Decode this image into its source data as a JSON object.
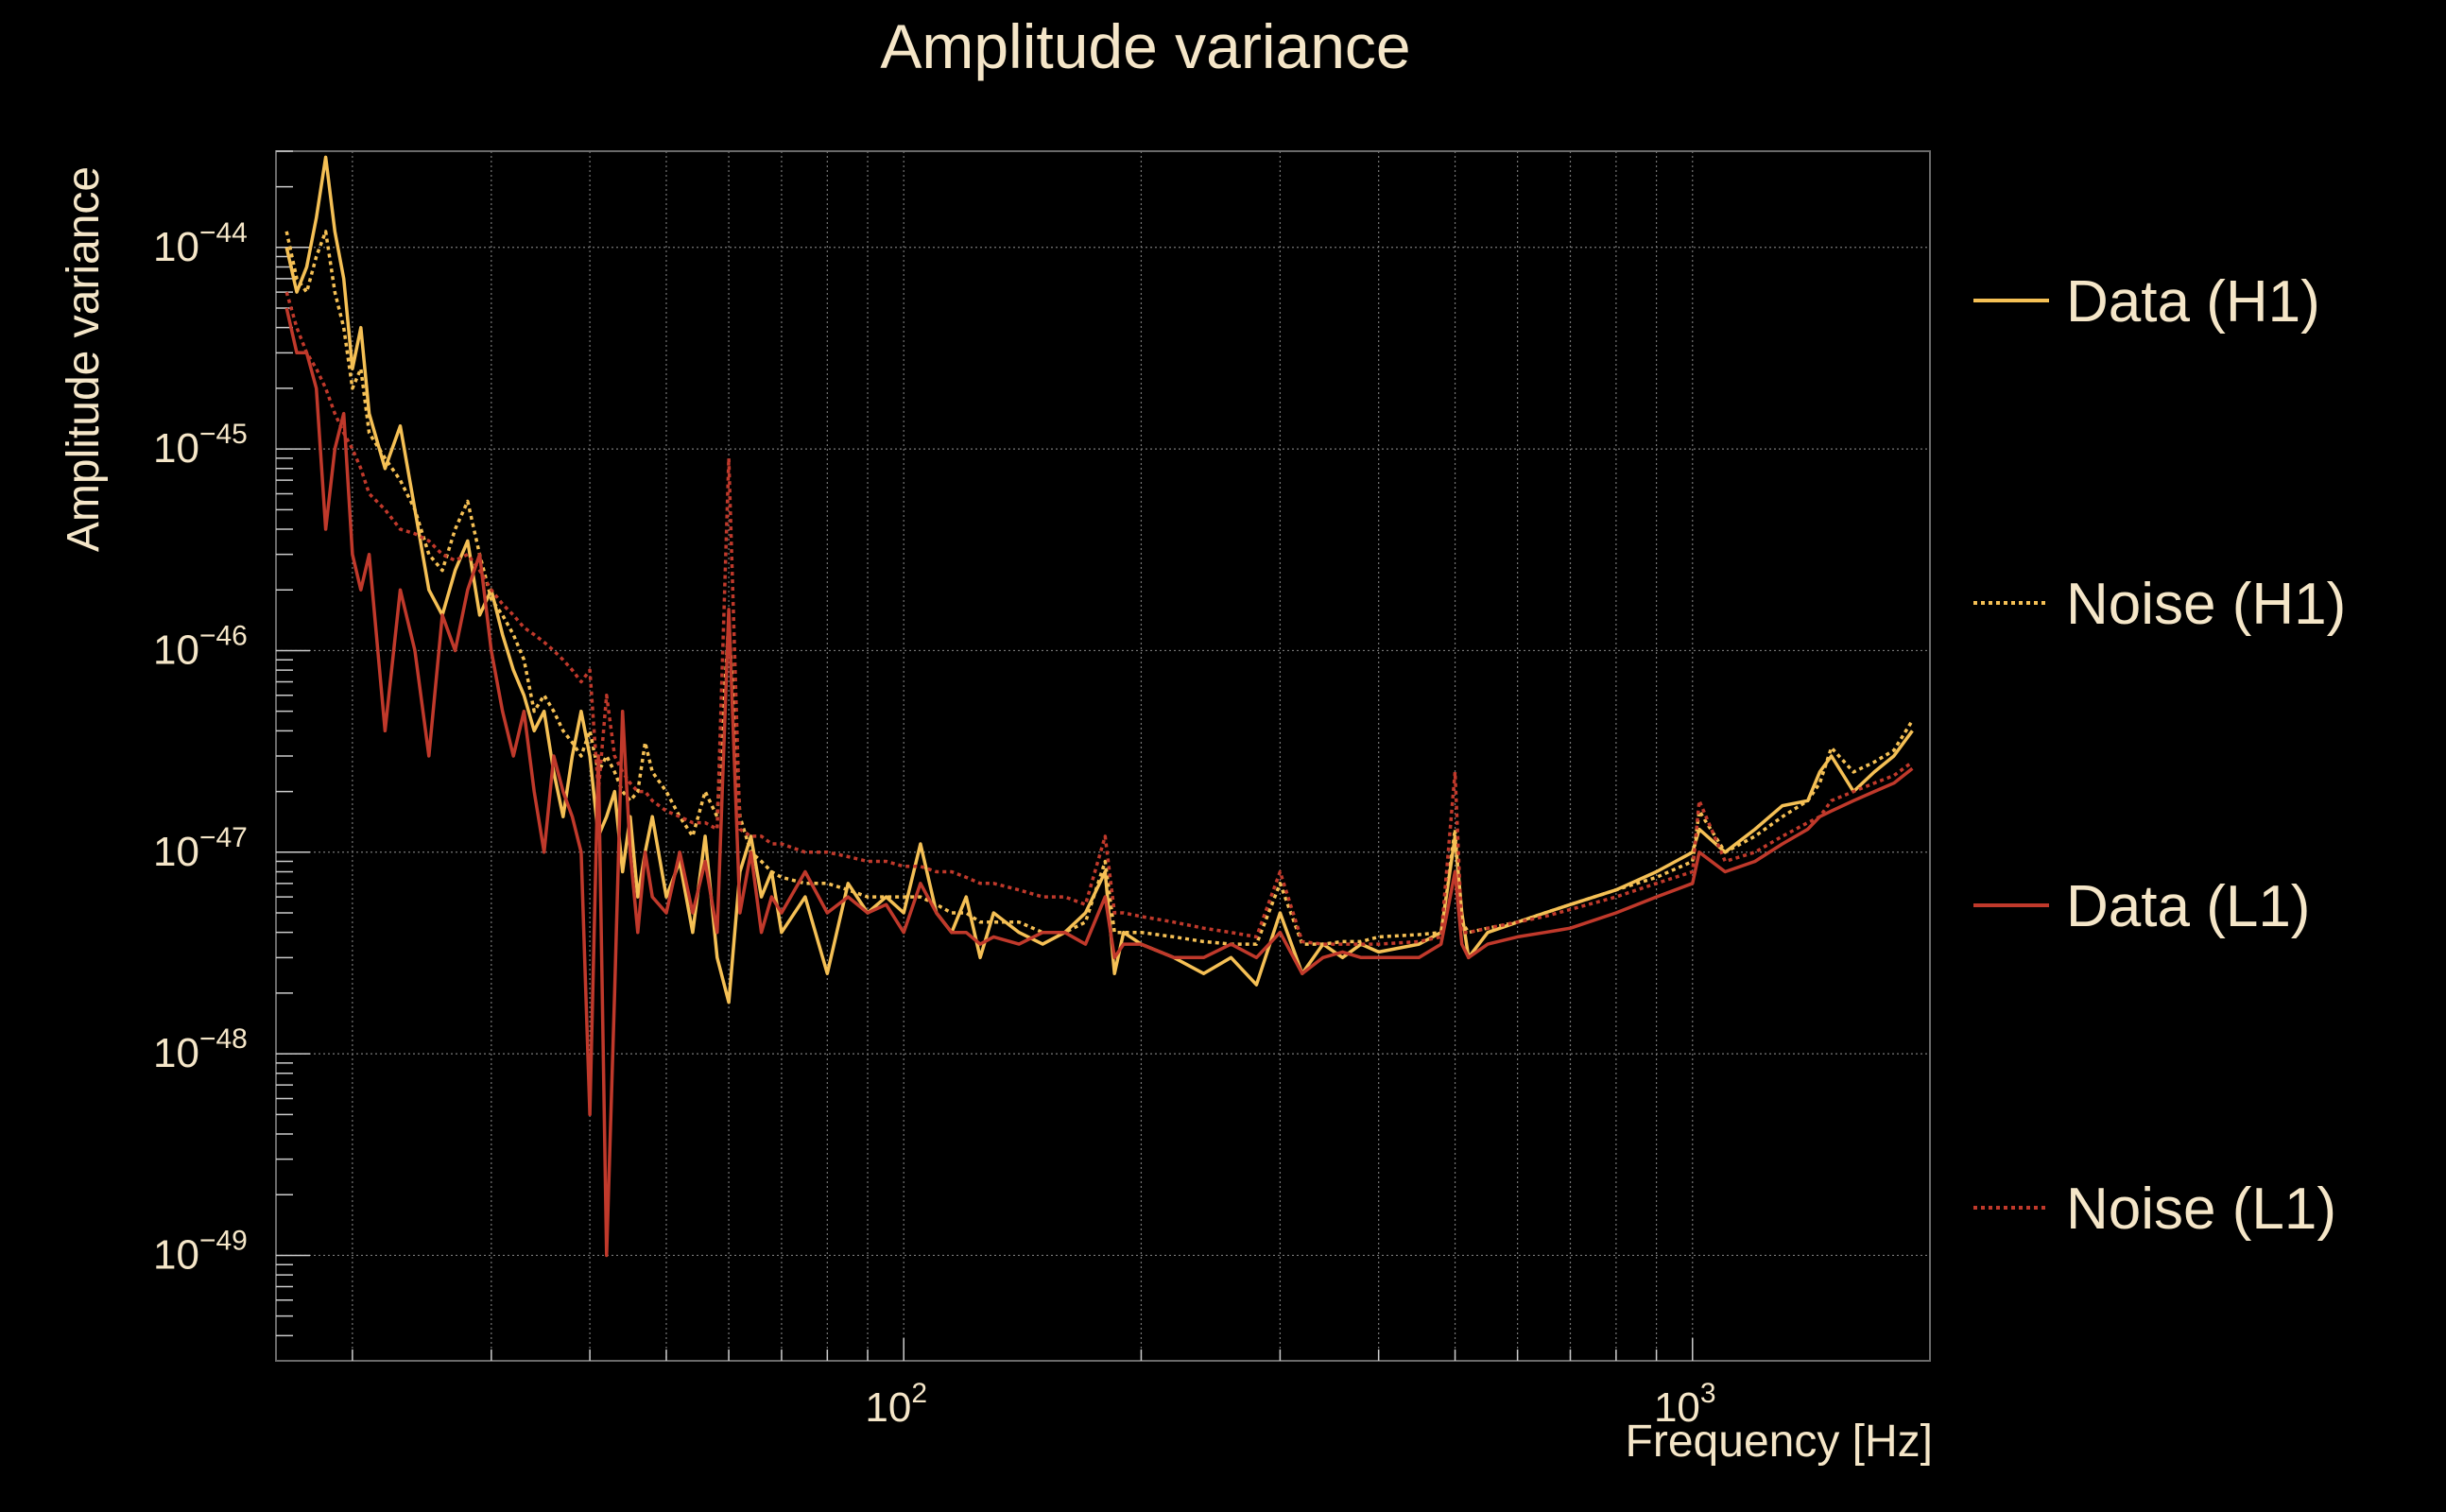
{
  "chart_data": {
    "type": "line",
    "title": "Amplitude variance",
    "xlabel": "Frequency [Hz]",
    "ylabel": "Amplitude variance",
    "x_scale": "log",
    "y_scale": "log",
    "xlim": [
      16,
      2000
    ],
    "ylim": [
      3e-50,
      3e-44
    ],
    "grid": true,
    "legend_placement": "right",
    "x_ticks": [
      {
        "base": "10",
        "exp": "2",
        "value": 100
      },
      {
        "base": "10",
        "exp": "3",
        "value": 1000
      }
    ],
    "y_ticks": [
      {
        "base": "10",
        "exp": "−44",
        "value": 1e-44
      },
      {
        "base": "10",
        "exp": "−45",
        "value": 1e-45
      },
      {
        "base": "10",
        "exp": "−46",
        "value": 1e-46
      },
      {
        "base": "10",
        "exp": "−47",
        "value": 1e-47
      },
      {
        "base": "10",
        "exp": "−48",
        "value": 1e-48
      },
      {
        "base": "10",
        "exp": "−49",
        "value": 1e-49
      }
    ],
    "series": [
      {
        "name": "Data (H1)",
        "color": "#f5c055",
        "dash": "solid",
        "x": [
          16.5,
          17,
          17.5,
          18,
          18.5,
          19,
          19.5,
          20,
          20.5,
          21,
          22,
          23,
          24,
          25,
          26,
          27,
          28,
          29,
          30,
          31,
          32,
          33,
          34,
          35,
          36,
          37,
          38,
          39,
          40,
          41,
          42,
          43,
          44,
          45,
          46,
          47,
          48,
          50,
          52,
          54,
          56,
          58,
          60,
          62,
          64,
          66,
          68,
          70,
          75,
          80,
          85,
          90,
          95,
          100,
          105,
          110,
          115,
          120,
          125,
          130,
          140,
          150,
          160,
          170,
          180,
          185,
          190,
          200,
          220,
          240,
          260,
          280,
          300,
          320,
          340,
          360,
          380,
          400,
          450,
          480,
          500,
          510,
          520,
          550,
          600,
          650,
          700,
          800,
          900,
          1000,
          1020,
          1100,
          1200,
          1300,
          1400,
          1450,
          1500,
          1600,
          1700,
          1800,
          1900
        ],
        "y": [
          1e-44,
          6e-45,
          8e-45,
          1.4e-44,
          2.8e-44,
          1.2e-44,
          7e-45,
          2.5e-45,
          4e-45,
          1.5e-45,
          8e-46,
          1.3e-45,
          5e-46,
          2e-46,
          1.5e-46,
          2.5e-46,
          3.5e-46,
          1.5e-46,
          2e-46,
          1.2e-46,
          8e-47,
          6e-47,
          4e-47,
          5e-47,
          2.5e-47,
          1.5e-47,
          3e-47,
          5e-47,
          3e-47,
          1.2e-47,
          1.5e-47,
          2e-47,
          8e-48,
          1.5e-47,
          6e-48,
          1e-47,
          1.5e-47,
          6e-48,
          9e-48,
          4e-48,
          1.2e-47,
          3e-48,
          1.8e-48,
          8e-48,
          1.2e-47,
          6e-48,
          8e-48,
          4e-48,
          6e-48,
          2.5e-48,
          7e-48,
          5e-48,
          6e-48,
          5e-48,
          1.1e-47,
          5e-48,
          4e-48,
          6e-48,
          3e-48,
          5e-48,
          4e-48,
          3.5e-48,
          4e-48,
          5e-48,
          8e-48,
          2.5e-48,
          4e-48,
          3.5e-48,
          3e-48,
          2.5e-48,
          3e-48,
          2.2e-48,
          5e-48,
          2.5e-48,
          3.5e-48,
          3e-48,
          3.5e-48,
          3.2e-48,
          3.5e-48,
          4e-48,
          1.2e-47,
          5e-48,
          3e-48,
          4e-48,
          4.5e-48,
          5e-48,
          5.5e-48,
          6.5e-48,
          8e-48,
          1e-47,
          1.3e-47,
          1e-47,
          1.3e-47,
          1.7e-47,
          1.8e-47,
          2.5e-47,
          3e-47,
          2e-47,
          2.5e-47,
          3e-47,
          4e-47
        ]
      },
      {
        "name": "Noise (H1)",
        "color": "#f5c055",
        "dash": "dotted",
        "x": [
          16.5,
          17,
          17.5,
          18,
          18.5,
          19,
          19.5,
          20,
          20.5,
          21,
          22,
          23,
          24,
          25,
          26,
          27,
          28,
          29,
          30,
          31,
          32,
          33,
          34,
          35,
          36,
          37,
          38,
          39,
          40,
          41,
          42,
          43,
          44,
          45,
          46,
          47,
          48,
          50,
          52,
          54,
          56,
          58,
          60,
          62,
          64,
          66,
          68,
          70,
          75,
          80,
          85,
          90,
          95,
          100,
          105,
          110,
          115,
          120,
          125,
          130,
          140,
          150,
          160,
          170,
          180,
          185,
          190,
          200,
          220,
          240,
          260,
          280,
          300,
          320,
          340,
          360,
          380,
          400,
          450,
          480,
          500,
          510,
          520,
          550,
          600,
          650,
          700,
          800,
          900,
          1000,
          1020,
          1100,
          1200,
          1300,
          1400,
          1450,
          1500,
          1600,
          1700,
          1800,
          1900
        ],
        "y": [
          1.2e-44,
          7e-45,
          6e-45,
          9e-45,
          1.2e-44,
          6e-45,
          4e-45,
          2e-45,
          2.5e-45,
          1.2e-45,
          9e-46,
          7e-46,
          5e-46,
          3e-46,
          2.5e-46,
          4e-46,
          5.5e-46,
          3e-46,
          1.8e-46,
          1.5e-46,
          1.2e-46,
          9e-47,
          5e-47,
          6e-47,
          5e-47,
          4e-47,
          3.5e-47,
          3e-47,
          4e-47,
          2.5e-47,
          3e-47,
          2.5e-47,
          2e-47,
          1.8e-47,
          2e-47,
          3.5e-47,
          2.5e-47,
          2e-47,
          1.5e-47,
          1.2e-47,
          2e-47,
          1.5e-47,
          1.4e-46,
          1.5e-47,
          1e-47,
          9e-48,
          8e-48,
          7.5e-48,
          7e-48,
          7e-48,
          6.5e-48,
          6e-48,
          6e-48,
          6e-48,
          6e-48,
          5.5e-48,
          5e-48,
          5e-48,
          4.5e-48,
          4.5e-48,
          4.5e-48,
          4e-48,
          4e-48,
          4.5e-48,
          9e-48,
          4e-48,
          4e-48,
          4e-48,
          3.8e-48,
          3.6e-48,
          3.5e-48,
          3.5e-48,
          7e-48,
          3.5e-48,
          3.5e-48,
          3.6e-48,
          3.6e-48,
          3.8e-48,
          3.9e-48,
          4e-48,
          1.3e-47,
          4.5e-48,
          4e-48,
          4.2e-48,
          4.5e-48,
          5e-48,
          5.5e-48,
          6.5e-48,
          7.5e-48,
          9e-48,
          1.6e-47,
          1e-47,
          1.2e-47,
          1.5e-47,
          1.8e-47,
          2.2e-47,
          3.3e-47,
          2.5e-47,
          2.8e-47,
          3.2e-47,
          4.5e-47
        ]
      },
      {
        "name": "Data (L1)",
        "color": "#c0392b",
        "dash": "solid",
        "x": [
          16.5,
          17,
          17.5,
          18,
          18.5,
          19,
          19.5,
          20,
          20.5,
          21,
          22,
          23,
          24,
          25,
          26,
          27,
          28,
          29,
          30,
          31,
          32,
          33,
          34,
          35,
          36,
          37,
          38,
          39,
          40,
          41,
          42,
          43,
          44,
          45,
          46,
          47,
          48,
          50,
          52,
          54,
          56,
          58,
          60,
          62,
          64,
          66,
          68,
          70,
          75,
          80,
          85,
          90,
          95,
          100,
          105,
          110,
          115,
          120,
          125,
          130,
          140,
          150,
          160,
          170,
          180,
          185,
          190,
          200,
          220,
          240,
          260,
          280,
          300,
          320,
          340,
          360,
          380,
          400,
          450,
          480,
          500,
          510,
          520,
          550,
          600,
          650,
          700,
          800,
          900,
          1000,
          1020,
          1100,
          1200,
          1300,
          1400,
          1450,
          1500,
          1600,
          1700,
          1800,
          1900
        ],
        "y": [
          5e-45,
          3e-45,
          3e-45,
          2e-45,
          4e-46,
          1e-45,
          1.5e-45,
          3e-46,
          2e-46,
          3e-46,
          4e-47,
          2e-46,
          1e-46,
          3e-47,
          1.5e-46,
          1e-46,
          2e-46,
          3e-46,
          1e-46,
          5e-47,
          3e-47,
          5e-47,
          2e-47,
          1e-47,
          3e-47,
          2e-47,
          1.5e-47,
          1e-47,
          5e-49,
          3e-47,
          1e-49,
          2e-48,
          5e-47,
          1e-47,
          4e-48,
          1e-47,
          6e-48,
          5e-48,
          1e-47,
          5e-48,
          9e-48,
          4e-48,
          1.6e-46,
          5e-48,
          1e-47,
          4e-48,
          6e-48,
          5e-48,
          8e-48,
          5e-48,
          6e-48,
          5e-48,
          5.5e-48,
          4e-48,
          7e-48,
          5e-48,
          4e-48,
          4e-48,
          3.5e-48,
          3.8e-48,
          3.5e-48,
          4e-48,
          4e-48,
          3.5e-48,
          6e-48,
          3e-48,
          3.5e-48,
          3.5e-48,
          3e-48,
          3e-48,
          3.5e-48,
          3e-48,
          4e-48,
          2.5e-48,
          3e-48,
          3.2e-48,
          3e-48,
          3e-48,
          3e-48,
          3.5e-48,
          8e-48,
          3.5e-48,
          3e-48,
          3.5e-48,
          3.8e-48,
          4e-48,
          4.2e-48,
          5e-48,
          6e-48,
          7e-48,
          1e-47,
          8e-48,
          9e-48,
          1.1e-47,
          1.3e-47,
          1.5e-47,
          1.6e-47,
          1.8e-47,
          2e-47,
          2.2e-47,
          2.6e-47
        ]
      },
      {
        "name": "Noise (L1)",
        "color": "#c0392b",
        "dash": "dotted",
        "x": [
          16.5,
          17,
          17.5,
          18,
          18.5,
          19,
          19.5,
          20,
          20.5,
          21,
          22,
          23,
          24,
          25,
          26,
          27,
          28,
          29,
          30,
          31,
          32,
          33,
          34,
          35,
          36,
          37,
          38,
          39,
          40,
          41,
          42,
          43,
          44,
          45,
          46,
          47,
          48,
          50,
          52,
          54,
          56,
          58,
          60,
          62,
          64,
          66,
          68,
          70,
          75,
          80,
          85,
          90,
          95,
          100,
          105,
          110,
          115,
          120,
          125,
          130,
          140,
          150,
          160,
          170,
          180,
          185,
          190,
          200,
          220,
          240,
          260,
          280,
          300,
          320,
          340,
          360,
          380,
          400,
          450,
          480,
          500,
          510,
          520,
          550,
          600,
          650,
          700,
          800,
          900,
          1000,
          1020,
          1100,
          1200,
          1300,
          1400,
          1450,
          1500,
          1600,
          1700,
          1800,
          1900
        ],
        "y": [
          6e-45,
          4e-45,
          3e-45,
          2.5e-45,
          2e-45,
          1.5e-45,
          1.2e-45,
          1e-45,
          8e-46,
          6e-46,
          5e-46,
          4e-46,
          3.8e-46,
          3.5e-46,
          3e-46,
          2.8e-46,
          3e-46,
          2.5e-46,
          2e-46,
          1.7e-46,
          1.5e-46,
          1.3e-46,
          1.2e-46,
          1.1e-46,
          1e-46,
          9e-47,
          8e-47,
          7e-47,
          8e-47,
          2e-47,
          6e-47,
          3e-47,
          2.5e-47,
          2.2e-47,
          2e-47,
          2e-47,
          1.8e-47,
          1.6e-47,
          1.5e-47,
          1.4e-47,
          1.4e-47,
          1.3e-47,
          9e-46,
          1.3e-47,
          1.2e-47,
          1.2e-47,
          1.1e-47,
          1.1e-47,
          1e-47,
          1e-47,
          9.5e-48,
          9e-48,
          9e-48,
          8.5e-48,
          8.5e-48,
          8e-48,
          8e-48,
          7.5e-48,
          7e-48,
          7e-48,
          6.5e-48,
          6e-48,
          6e-48,
          5.5e-48,
          1.2e-47,
          5e-48,
          5e-48,
          4.8e-48,
          4.5e-48,
          4.2e-48,
          4e-48,
          3.8e-48,
          8e-48,
          3.6e-48,
          3.5e-48,
          3.5e-48,
          3.5e-48,
          3.5e-48,
          3.6e-48,
          3.8e-48,
          2.5e-47,
          4e-48,
          4e-48,
          4.2e-48,
          4.5e-48,
          4.8e-48,
          5.2e-48,
          6e-48,
          7e-48,
          8e-48,
          1.8e-47,
          9e-48,
          1e-47,
          1.2e-47,
          1.4e-47,
          1.5e-47,
          1.8e-47,
          2e-47,
          2.2e-47,
          2.4e-47,
          2.8e-47
        ]
      }
    ]
  }
}
